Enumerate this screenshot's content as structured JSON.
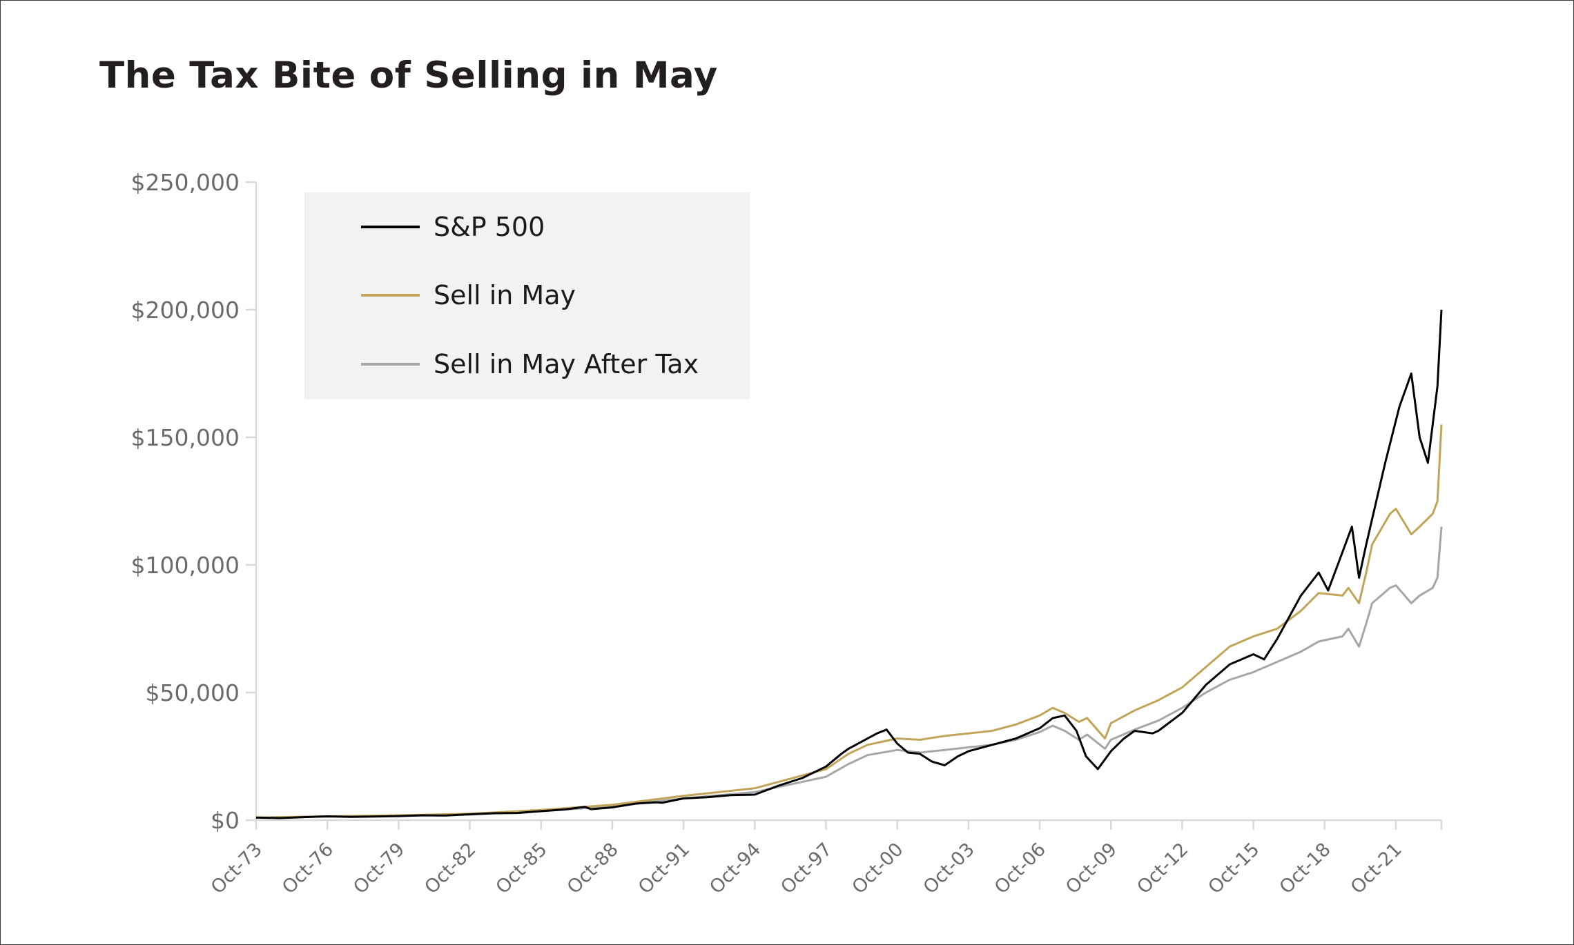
{
  "chart_data": {
    "type": "line",
    "title": "The Tax Bite of Selling in May",
    "xlabel": "",
    "ylabel": "",
    "ylim": [
      0,
      250000
    ],
    "yticks": [
      "$0",
      "$50,000",
      "$100,000",
      "$150,000",
      "$200,000",
      "$250,000"
    ],
    "ytick_values": [
      0,
      50000,
      100000,
      150000,
      200000,
      250000
    ],
    "xlim": [
      1973.75,
      2023.67
    ],
    "xticks": [
      "Oct-73",
      "Oct-76",
      "Oct-79",
      "Oct-82",
      "Oct-85",
      "Oct-88",
      "Oct-91",
      "Oct-94",
      "Oct-97",
      "Oct-00",
      "Oct-03",
      "Oct-06",
      "Oct-09",
      "Oct-12",
      "Oct-15",
      "Oct-18",
      "Oct-21"
    ],
    "xtick_values": [
      1973.75,
      1976.75,
      1979.75,
      1982.75,
      1985.75,
      1988.75,
      1991.75,
      1994.75,
      1997.75,
      2000.75,
      2003.75,
      2006.75,
      2009.75,
      2012.75,
      2015.75,
      2018.75,
      2021.75
    ],
    "legend_position": "top-left",
    "series": [
      {
        "name": "S&P 500",
        "color": "#000000",
        "x": [
          1973.75,
          1974.75,
          1975.75,
          1976.75,
          1977.75,
          1978.75,
          1979.75,
          1980.75,
          1981.75,
          1982.75,
          1983.75,
          1984.75,
          1985.75,
          1986.75,
          1987.6,
          1987.85,
          1988.75,
          1989.75,
          1990.6,
          1990.85,
          1991.75,
          1992.75,
          1993.75,
          1994.75,
          1995.75,
          1996.75,
          1997.75,
          1998.4,
          1998.7,
          1999.3,
          1999.9,
          2000.3,
          2000.75,
          2001.2,
          2001.7,
          2002.2,
          2002.75,
          2003.3,
          2003.75,
          2004.75,
          2005.75,
          2006.75,
          2007.3,
          2007.8,
          2008.3,
          2008.7,
          2009.2,
          2009.75,
          2010.3,
          2010.75,
          2011.5,
          2011.75,
          2012.75,
          2013.75,
          2014.75,
          2015.75,
          2016.2,
          2016.75,
          2017.75,
          2018.5,
          2018.9,
          2019.5,
          2019.9,
          2020.2,
          2020.5,
          2020.75,
          2021.3,
          2021.9,
          2022.4,
          2022.75,
          2023.1,
          2023.5,
          2023.67
        ],
        "values": [
          1000,
          800,
          1200,
          1500,
          1300,
          1400,
          1600,
          1900,
          1800,
          2300,
          2700,
          2800,
          3500,
          4200,
          5200,
          4300,
          5000,
          6500,
          7000,
          6800,
          8500,
          9000,
          9800,
          10000,
          13500,
          16500,
          21000,
          26000,
          28000,
          31000,
          34000,
          35500,
          30000,
          26500,
          26000,
          23000,
          21500,
          25000,
          27000,
          29500,
          32000,
          36000,
          40000,
          41000,
          35000,
          25000,
          20000,
          27000,
          32000,
          35000,
          34000,
          35000,
          42000,
          53000,
          61000,
          65000,
          63000,
          71000,
          88000,
          97000,
          90000,
          105000,
          115000,
          95000,
          108000,
          118000,
          140000,
          162000,
          175000,
          150000,
          140000,
          170000,
          200000
        ]
      },
      {
        "name": "Sell in May",
        "color": "#c1a458",
        "x": [
          1973.75,
          1976.75,
          1979.75,
          1982.75,
          1985.75,
          1988.75,
          1991.75,
          1994.75,
          1997.75,
          1998.7,
          1999.5,
          2000.75,
          2001.7,
          2002.75,
          2003.75,
          2004.75,
          2005.75,
          2006.75,
          2007.3,
          2007.8,
          2008.4,
          2008.75,
          2009.5,
          2009.75,
          2010.75,
          2011.75,
          2012.75,
          2013.75,
          2014.75,
          2015.75,
          2016.75,
          2017.75,
          2018.5,
          2019.5,
          2019.75,
          2020.2,
          2020.5,
          2020.75,
          2021.5,
          2021.75,
          2022.4,
          2022.75,
          2023.3,
          2023.5,
          2023.67
        ],
        "values": [
          1000,
          1500,
          1900,
          2500,
          4000,
          6000,
          9500,
          12500,
          20000,
          26000,
          29500,
          32000,
          31500,
          33000,
          34000,
          35000,
          37500,
          41000,
          44000,
          42000,
          38500,
          40000,
          32000,
          38000,
          43000,
          47000,
          52000,
          60000,
          68000,
          72000,
          75000,
          82000,
          89000,
          88000,
          91000,
          85000,
          97000,
          108000,
          120000,
          122000,
          112000,
          115000,
          120000,
          125000,
          155000
        ]
      },
      {
        "name": "Sell in May After Tax",
        "color": "#a6a6a6",
        "x": [
          1973.75,
          1976.75,
          1979.75,
          1982.75,
          1985.75,
          1988.75,
          1991.75,
          1994.75,
          1997.75,
          1998.7,
          1999.5,
          2000.75,
          2001.7,
          2002.75,
          2003.75,
          2004.75,
          2005.75,
          2006.75,
          2007.3,
          2007.8,
          2008.4,
          2008.75,
          2009.5,
          2009.75,
          2010.75,
          2011.75,
          2012.75,
          2013.75,
          2014.75,
          2015.75,
          2016.75,
          2017.75,
          2018.5,
          2019.5,
          2019.75,
          2020.2,
          2020.5,
          2020.75,
          2021.5,
          2021.75,
          2022.4,
          2022.75,
          2023.3,
          2023.5,
          2023.67
        ],
        "values": [
          1000,
          1400,
          1700,
          2200,
          3500,
          5500,
          8500,
          11000,
          17000,
          22000,
          25500,
          27500,
          26500,
          27500,
          28500,
          29500,
          31500,
          34500,
          37000,
          35000,
          31500,
          33500,
          28000,
          31500,
          35500,
          39000,
          44000,
          50000,
          55000,
          58000,
          62000,
          66000,
          70000,
          72000,
          75000,
          68000,
          77000,
          85000,
          91000,
          92000,
          85000,
          88000,
          91000,
          95000,
          115000
        ]
      }
    ]
  }
}
